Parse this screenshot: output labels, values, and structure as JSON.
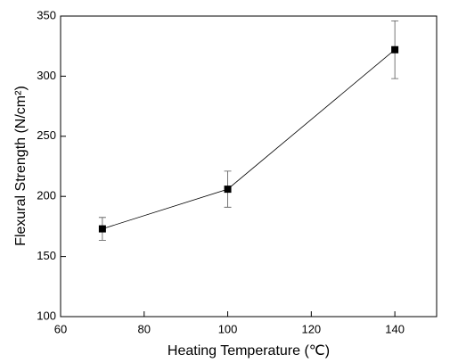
{
  "chart_data": {
    "type": "line",
    "x_label": "Heating Temperature (℃)",
    "y_label": "Flexural Strength (N/cm²)",
    "x": [
      70,
      100,
      140
    ],
    "series": [
      {
        "color": "#000000",
        "values": [
          173,
          206,
          322
        ],
        "errors": [
          9.5,
          15,
          24
        ]
      }
    ],
    "xlim": [
      60,
      150
    ],
    "xticks": [
      60,
      80,
      100,
      120,
      140
    ],
    "ylim": [
      100,
      350
    ],
    "yticks": [
      100,
      150,
      200,
      250,
      300,
      350
    ],
    "grid": false
  }
}
